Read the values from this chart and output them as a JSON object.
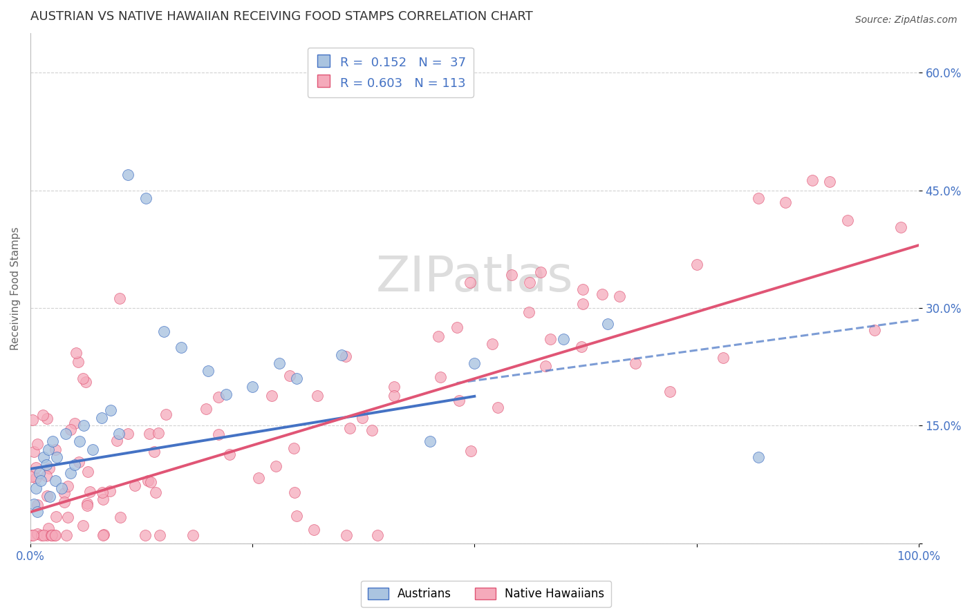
{
  "title": "AUSTRIAN VS NATIVE HAWAIIAN RECEIVING FOOD STAMPS CORRELATION CHART",
  "source_text": "Source: ZipAtlas.com",
  "ylabel": "Receiving Food Stamps",
  "legend_label1": "Austrians",
  "legend_label2": "Native Hawaiians",
  "austrians_color": "#aac4e0",
  "native_hawaiians_color": "#f5aabb",
  "line_austrians_color": "#4472c4",
  "line_native_color": "#e05575",
  "background_color": "#ffffff",
  "grid_color": "#cccccc",
  "title_color": "#333333",
  "axis_label_color": "#4472c4",
  "watermark": "ZIPatlas",
  "xlim": [
    0.0,
    1.0
  ],
  "ylim": [
    0.0,
    0.65
  ],
  "yticks": [
    0.0,
    0.15,
    0.3,
    0.45,
    0.6
  ],
  "ytick_labels": [
    "",
    "15.0%",
    "30.0%",
    "45.0%",
    "60.0%"
  ],
  "xtick_positions": [
    0.0,
    1.0
  ],
  "xtick_labels": [
    "0.0%",
    "100.0%"
  ],
  "legend_line1": "R =  0.152   N =  37",
  "legend_line2": "R = 0.603   N = 113",
  "aus_intercept": 0.095,
  "aus_slope": 0.185,
  "nat_intercept": 0.04,
  "nat_slope": 0.34,
  "aus_dashed_intercept": 0.13,
  "aus_dashed_slope": 0.155
}
